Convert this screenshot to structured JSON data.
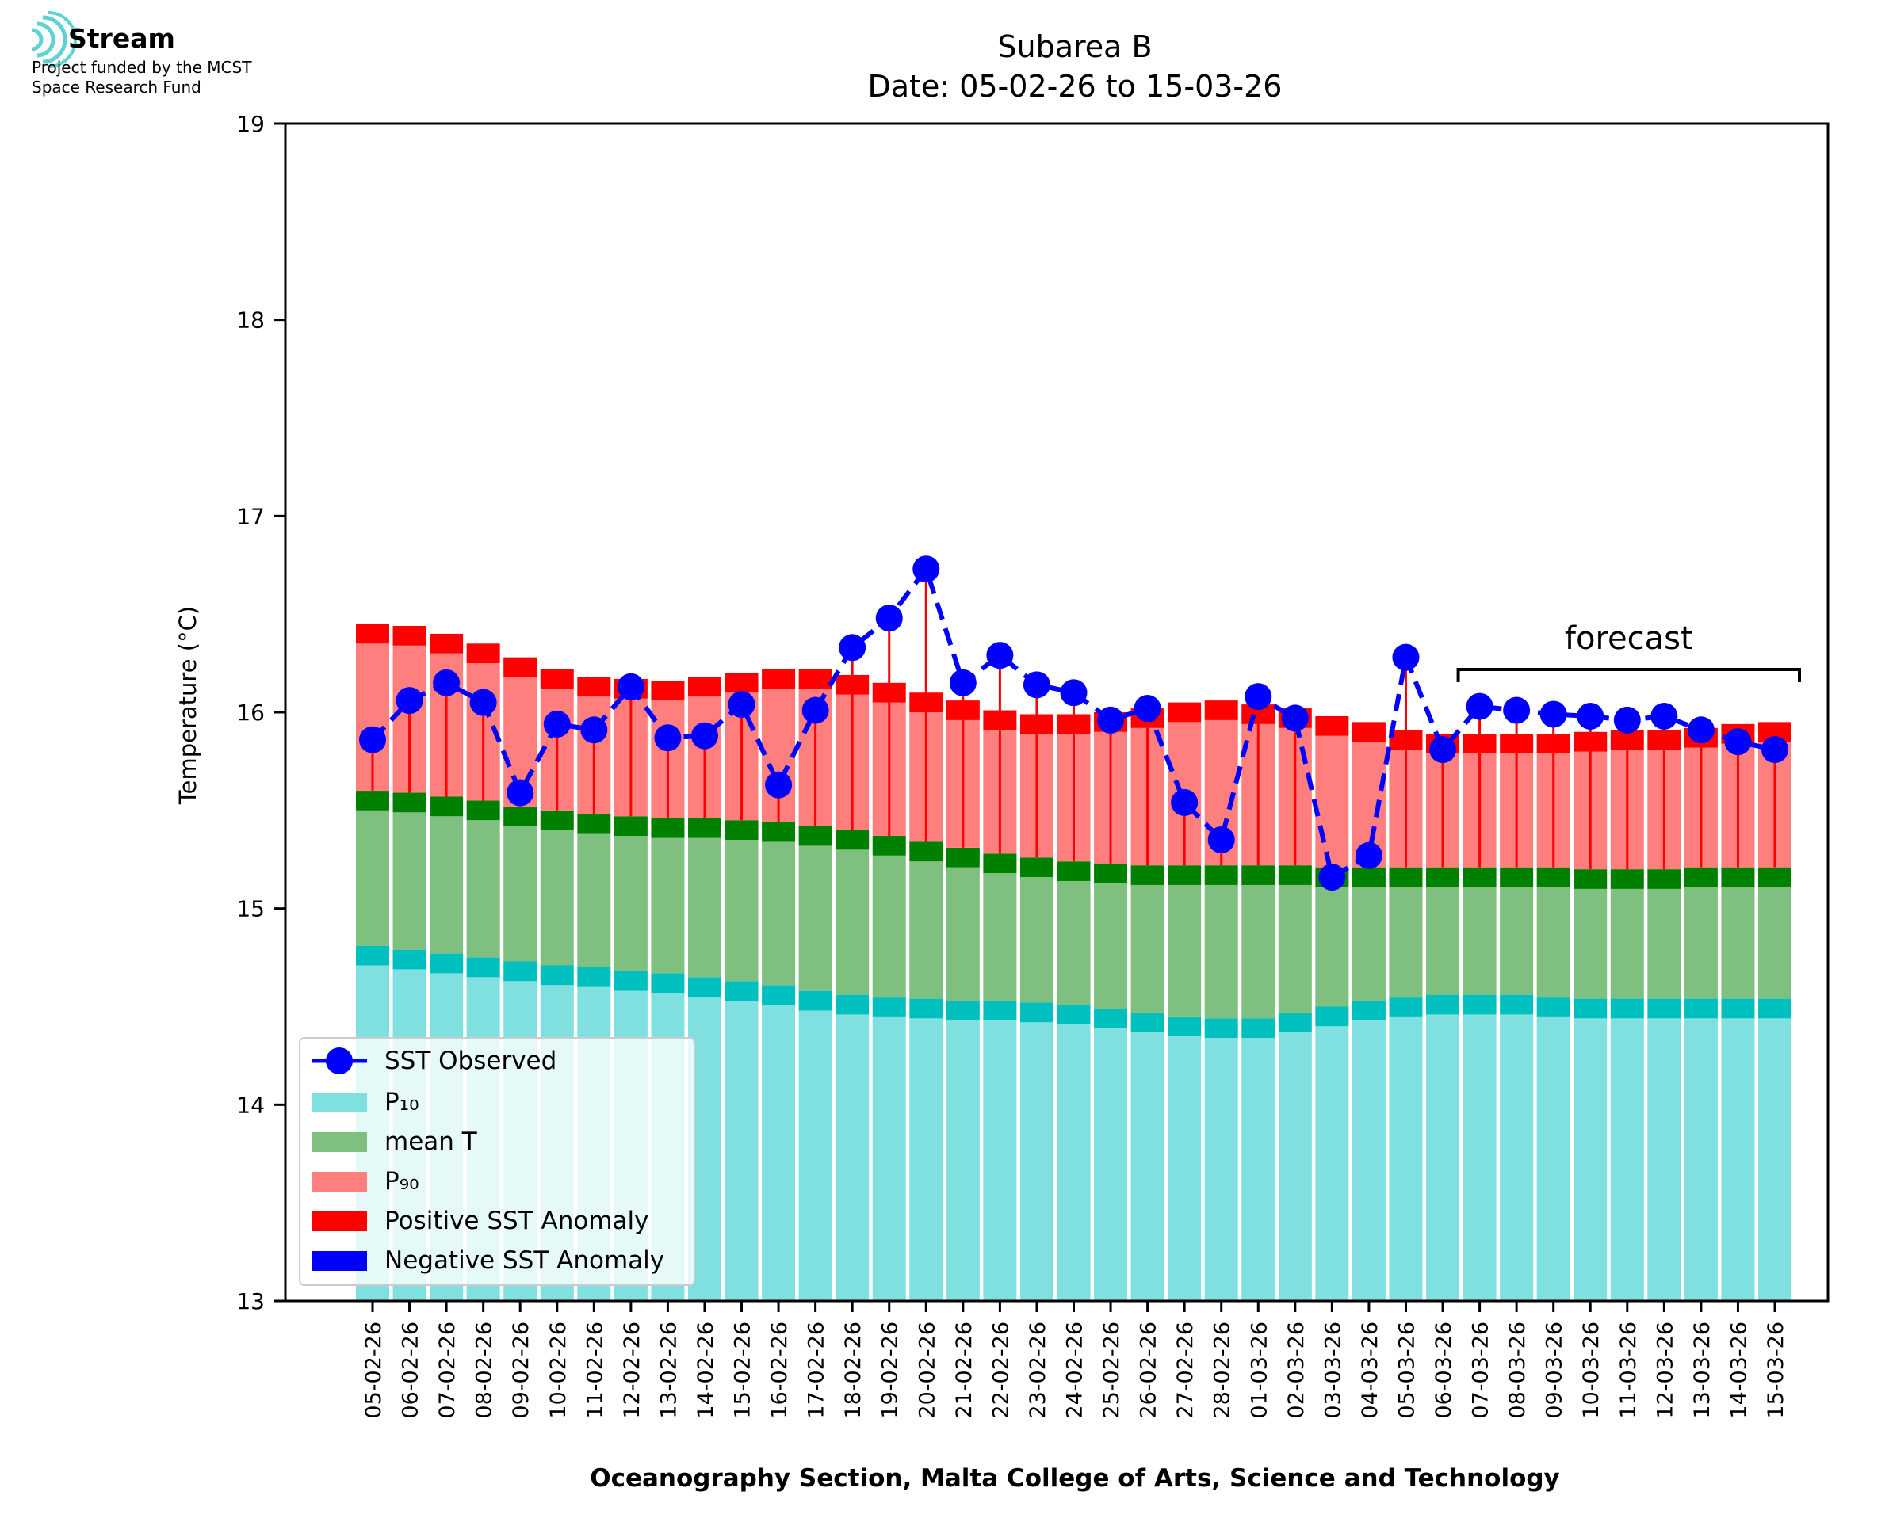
{
  "logo": {
    "name": "Stream",
    "line1": "Project funded by the MCST",
    "line2": "Space Research Fund"
  },
  "colors": {
    "p10": "#80dfdf",
    "p10_band": "#00bfbf",
    "mean": "#7fbf7f",
    "mean_band": "#008000",
    "p90": "#ff7f7f",
    "p90_band": "#ff0000",
    "positive_anomaly": "#ff0000",
    "negative_anomaly": "#0000ff",
    "observed": "#0000ff"
  },
  "chart_data": {
    "type": "bar",
    "title": "Subarea B",
    "subtitle": "Date: 05-02-26 to 15-03-26",
    "xlabel": "Oceanography Section, Malta College of Arts, Science and Technology",
    "ylabel": "Temperature (°C)",
    "ylim": [
      13,
      19
    ],
    "yticks": [
      13,
      14,
      15,
      16,
      17,
      18,
      19
    ],
    "grid": false,
    "legend_position": "bottom-left",
    "annotation": {
      "text": "forecast",
      "from": "07-03-26",
      "to": "15-03-26"
    },
    "categories": [
      "05-02-26",
      "06-02-26",
      "07-02-26",
      "08-02-26",
      "09-02-26",
      "10-02-26",
      "11-02-26",
      "12-02-26",
      "13-02-26",
      "14-02-26",
      "15-02-26",
      "16-02-26",
      "17-02-26",
      "18-02-26",
      "19-02-26",
      "20-02-26",
      "21-02-26",
      "22-02-26",
      "23-02-26",
      "24-02-26",
      "25-02-26",
      "26-02-26",
      "27-02-26",
      "28-02-26",
      "01-03-26",
      "02-03-26",
      "03-03-26",
      "04-03-26",
      "05-03-26",
      "06-03-26",
      "07-03-26",
      "08-03-26",
      "09-03-26",
      "10-03-26",
      "11-03-26",
      "12-03-26",
      "13-03-26",
      "14-03-26",
      "15-03-26"
    ],
    "series": [
      {
        "name": "SST Observed",
        "kind": "line-marker",
        "values": [
          15.86,
          16.06,
          16.15,
          16.05,
          15.59,
          15.94,
          15.91,
          16.13,
          15.87,
          15.88,
          16.04,
          15.63,
          16.01,
          16.33,
          16.48,
          16.73,
          16.15,
          16.29,
          16.14,
          16.1,
          15.96,
          16.02,
          15.54,
          15.35,
          16.08,
          15.97,
          15.16,
          15.27,
          16.28,
          15.81,
          16.03,
          16.01,
          15.99,
          15.98,
          15.96,
          15.98,
          15.91,
          15.85,
          15.81
        ]
      },
      {
        "name": "P₁₀",
        "kind": "bar",
        "values": [
          14.81,
          14.79,
          14.77,
          14.75,
          14.73,
          14.71,
          14.7,
          14.68,
          14.67,
          14.65,
          14.63,
          14.61,
          14.58,
          14.56,
          14.55,
          14.54,
          14.53,
          14.53,
          14.52,
          14.51,
          14.49,
          14.47,
          14.45,
          14.44,
          14.44,
          14.47,
          14.5,
          14.53,
          14.55,
          14.56,
          14.56,
          14.56,
          14.55,
          14.54,
          14.54,
          14.54,
          14.54,
          14.54,
          14.54
        ]
      },
      {
        "name": "mean T",
        "kind": "bar",
        "values": [
          15.6,
          15.59,
          15.57,
          15.55,
          15.52,
          15.5,
          15.48,
          15.47,
          15.46,
          15.46,
          15.45,
          15.44,
          15.42,
          15.4,
          15.37,
          15.34,
          15.31,
          15.28,
          15.26,
          15.24,
          15.23,
          15.22,
          15.22,
          15.22,
          15.22,
          15.22,
          15.21,
          15.21,
          15.21,
          15.21,
          15.21,
          15.21,
          15.21,
          15.2,
          15.2,
          15.2,
          15.21,
          15.21,
          15.21
        ]
      },
      {
        "name": "P₉₀",
        "kind": "bar",
        "values": [
          16.45,
          16.44,
          16.4,
          16.35,
          16.28,
          16.22,
          16.18,
          16.17,
          16.16,
          16.18,
          16.2,
          16.22,
          16.22,
          16.19,
          16.15,
          16.1,
          16.06,
          16.01,
          15.99,
          15.99,
          16.0,
          16.02,
          16.05,
          16.06,
          16.04,
          16.02,
          15.98,
          15.95,
          15.91,
          15.89,
          15.89,
          15.89,
          15.89,
          15.9,
          15.91,
          15.91,
          15.92,
          15.94,
          15.95
        ]
      },
      {
        "name": "Positive SST Anomaly",
        "kind": "legend-only"
      },
      {
        "name": "Negative SST Anomaly",
        "kind": "legend-only"
      }
    ]
  }
}
